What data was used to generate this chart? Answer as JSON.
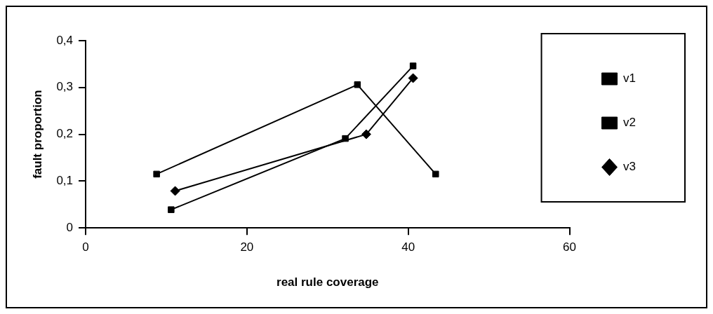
{
  "chart_data": {
    "type": "line",
    "xlabel": "real rule coverage",
    "ylabel": "fault proportion",
    "xlim": [
      0,
      60
    ],
    "xticks": [
      0,
      20,
      40,
      60
    ],
    "ylim": [
      0,
      0.4
    ],
    "yticks": [
      {
        "value": 0,
        "label": "0"
      },
      {
        "value": 0.1,
        "label": "0,1"
      },
      {
        "value": 0.2,
        "label": "0,2"
      },
      {
        "value": 0.3,
        "label": "0,3"
      },
      {
        "value": 0.4,
        "label": "0,4"
      }
    ],
    "grid": false,
    "legend": "right",
    "line_style": "solid",
    "series": [
      {
        "name": "v1",
        "color": "#000000",
        "marker": "square",
        "x": [
          8.8,
          33.7,
          43.4
        ],
        "values": [
          0.115,
          0.306,
          0.115
        ]
      },
      {
        "name": "v2",
        "color": "#000000",
        "marker": "square",
        "x": [
          10.6,
          32.2,
          40.6
        ],
        "values": [
          0.039,
          0.191,
          0.346
        ]
      },
      {
        "name": "v3",
        "color": "#000000",
        "marker": "diamond",
        "x": [
          11.1,
          34.8,
          40.6
        ],
        "values": [
          0.079,
          0.2,
          0.32
        ]
      }
    ]
  }
}
